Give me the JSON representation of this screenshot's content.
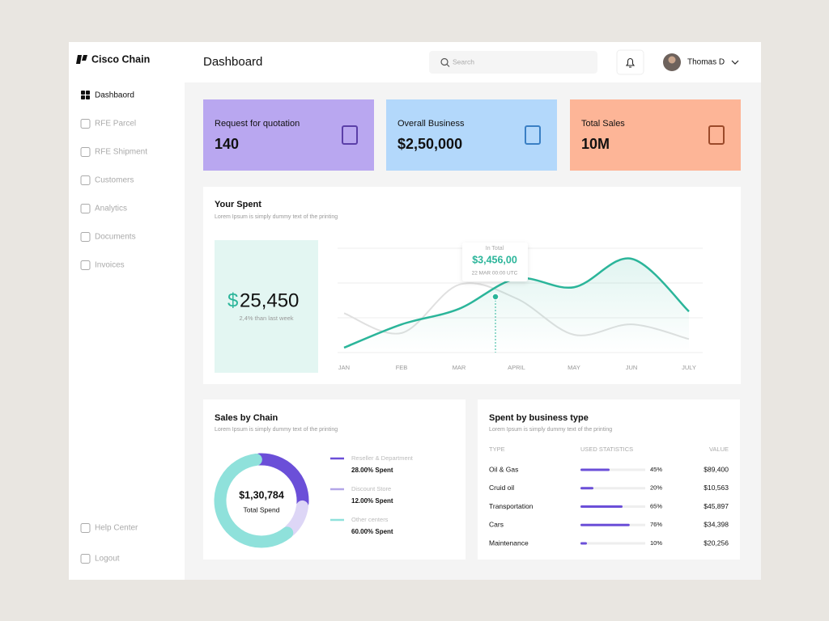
{
  "brand": "Cisco Chain",
  "nav": [
    "Dashbaord",
    "RFE Parcel",
    "RFE Shipment",
    "Customers",
    "Analytics",
    "Documents",
    "Invoices"
  ],
  "nav_bottom": [
    "Help Center",
    "Logout"
  ],
  "header": {
    "title": "Dashboard",
    "search_placeholder": "Search",
    "user": "Thomas  D"
  },
  "cards": [
    {
      "label": "Request for quotation",
      "value": "140",
      "color": "#b9a7f0"
    },
    {
      "label": "Overall Business",
      "value": "$2,50,000",
      "color": "#b3d8fb"
    },
    {
      "label": "Total Sales",
      "value": "10M",
      "color": "#fdb597"
    }
  ],
  "spent": {
    "title": "Your Spent",
    "subtitle": "Lorem Ipsum is simply dummy text of the printing",
    "currency": "$",
    "amount": "25,450",
    "note": "2,4% than last week",
    "tooltip": {
      "label": "In Total",
      "value": "$3,456,00",
      "date": "22 MAR 00:00 UTC"
    },
    "chart": {
      "type": "line",
      "categories": [
        "JAN",
        "FEB",
        "MAR",
        "APRIL",
        "MAY",
        "JUN",
        "JULY"
      ],
      "series": [
        {
          "color": "#e0e0e0",
          "values": [
            55,
            32,
            88,
            72,
            30,
            42,
            25
          ]
        },
        {
          "color": "#2bb59a",
          "values": [
            15,
            42,
            60,
            95,
            85,
            118,
            57
          ]
        }
      ]
    }
  },
  "sales": {
    "title": "Sales by Chain",
    "subtitle": "Lorem Ipsum is simply dummy text of the printing",
    "total": "$1,30,784",
    "total_label": "Total Spend",
    "chart": {
      "type": "pie",
      "categories": [
        "Reseller & Department",
        "Discount Store",
        "Other centers"
      ],
      "values": [
        28,
        12,
        60
      ],
      "value_labels": [
        "28.00% Spent",
        "12.00% Spent",
        "60.00% Spent"
      ],
      "colors": [
        "#6b4fd8",
        "#ddd6f6",
        "#8fe1db"
      ]
    }
  },
  "business": {
    "title": "Spent by business type",
    "subtitle": "Lorem Ipsum is simply dummy text of the printing",
    "columns": [
      "TYPE",
      "USED STATISTICS",
      "VALUE"
    ],
    "rows": [
      {
        "type": "Oil & Gas",
        "stat": 45,
        "stat_label": "45%",
        "value": "$89,400"
      },
      {
        "type": "Cruid oil",
        "stat": 20,
        "stat_label": "20%",
        "value": "$10,563"
      },
      {
        "type": "Transportation",
        "stat": 65,
        "stat_label": "65%",
        "value": "$45,897"
      },
      {
        "type": "Cars",
        "stat": 76,
        "stat_label": "76%",
        "value": "$34,398"
      },
      {
        "type": "Maintenance",
        "stat": 10,
        "stat_label": "10%",
        "value": "$20,256"
      }
    ]
  }
}
